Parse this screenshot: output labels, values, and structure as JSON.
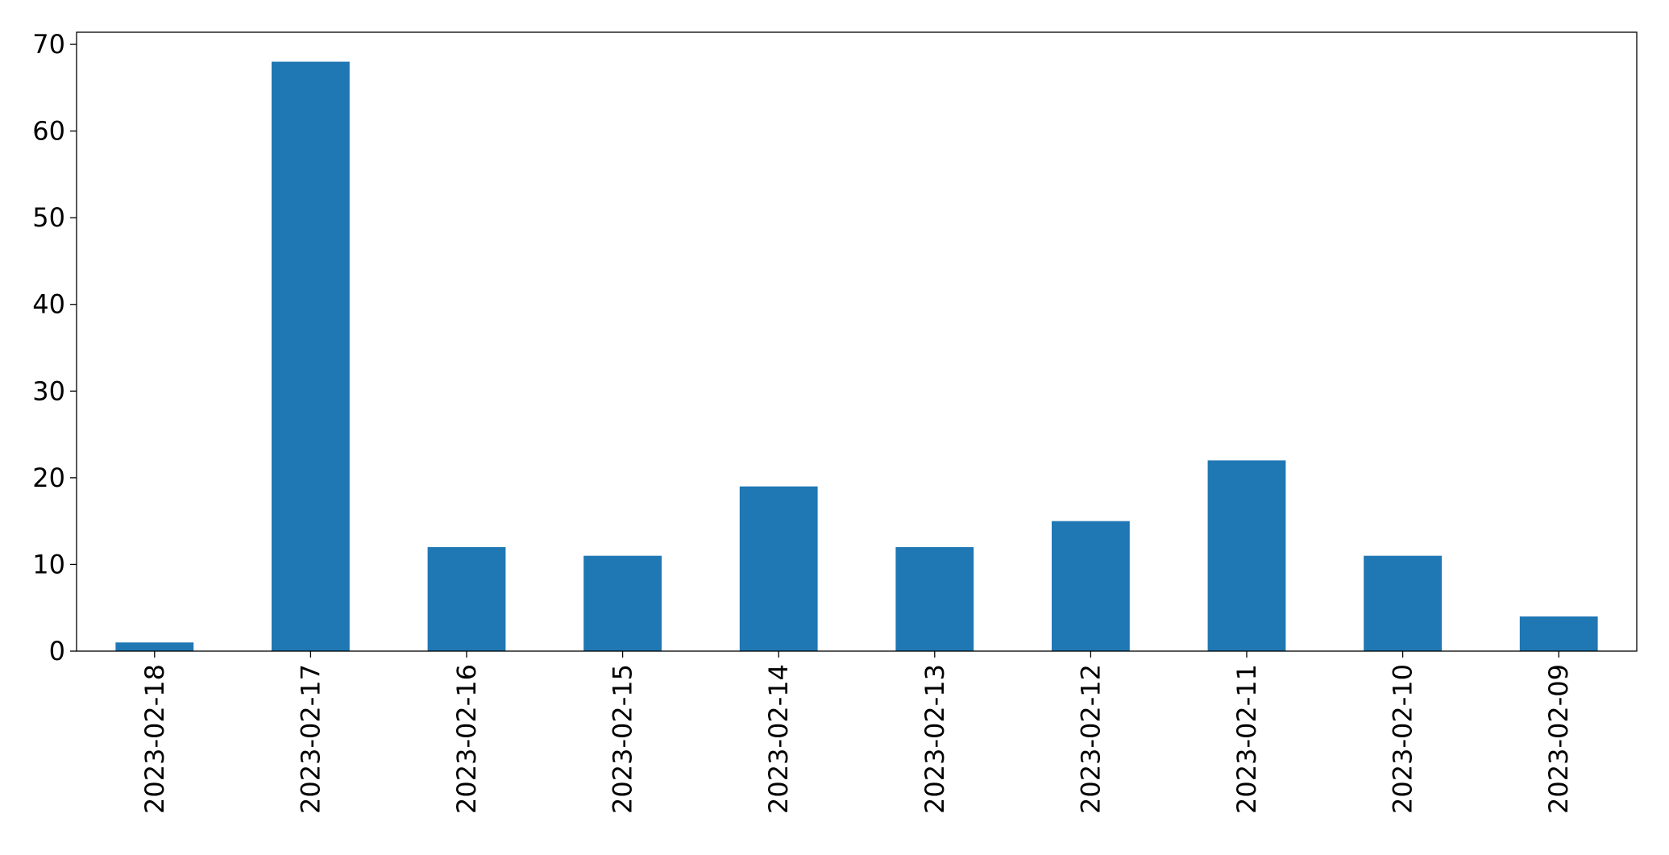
{
  "chart_data": {
    "type": "bar",
    "categories": [
      "2023-02-18",
      "2023-02-17",
      "2023-02-16",
      "2023-02-15",
      "2023-02-14",
      "2023-02-13",
      "2023-02-12",
      "2023-02-11",
      "2023-02-10",
      "2023-02-09"
    ],
    "values": [
      1,
      68,
      12,
      11,
      19,
      12,
      15,
      22,
      11,
      4
    ],
    "color": "#1f77b4",
    "ylim": [
      0,
      71.4
    ],
    "yticks": [
      0,
      10,
      20,
      30,
      40,
      50,
      60,
      70
    ],
    "grid": false
  }
}
